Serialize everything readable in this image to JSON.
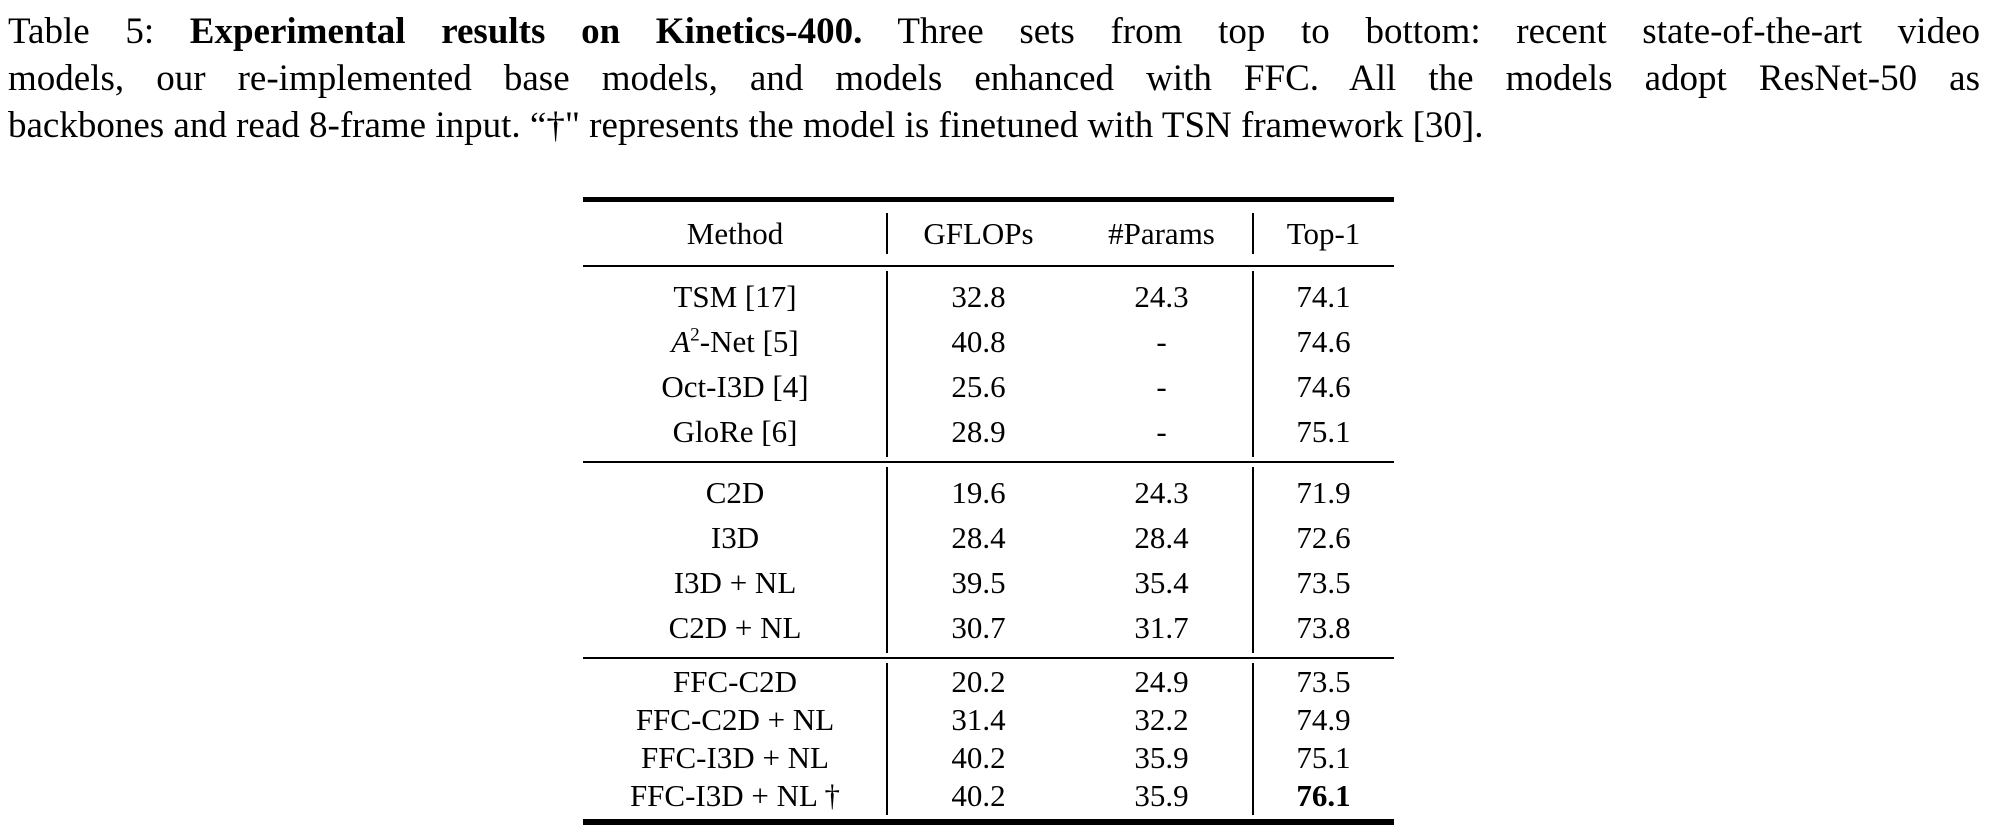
{
  "caption": {
    "line1_prefix": "Table 5: ",
    "line1_bold": "Experimental results on Kinetics-400.",
    "line1_rest": " Three sets from top to bottom: recent state-of-the-art video",
    "line2": "models, our re-implemented base models, and models enhanced with FFC. All the models adopt ResNet-50 as",
    "line3": "backbones and read 8-frame input. “†\" represents the model is finetuned with TSN framework [30]."
  },
  "table": {
    "columns": [
      "Method",
      "GFLOPs",
      "#Params",
      "Top-1"
    ],
    "blocks": [
      {
        "label": "state-of-the-art video models",
        "rows": [
          {
            "method": "TSM [17]",
            "gflops": "32.8",
            "params": "24.3",
            "top1": "74.1"
          },
          {
            "method_var": "A",
            "method_sup": "2",
            "method_rest": "-Net [5]",
            "gflops": "40.8",
            "params": "-",
            "top1": "74.6"
          },
          {
            "method": "Oct-I3D [4]",
            "gflops": "25.6",
            "params": "-",
            "top1": "74.6"
          },
          {
            "method": "GloRe [6]",
            "gflops": "28.9",
            "params": "-",
            "top1": "75.1"
          }
        ]
      },
      {
        "label": "re-implemented base models",
        "rows": [
          {
            "method": "C2D",
            "gflops": "19.6",
            "params": "24.3",
            "top1": "71.9"
          },
          {
            "method": "I3D",
            "gflops": "28.4",
            "params": "28.4",
            "top1": "72.6"
          },
          {
            "method": "I3D + NL",
            "gflops": "39.5",
            "params": "35.4",
            "top1": "73.5"
          },
          {
            "method": "C2D + NL",
            "gflops": "30.7",
            "params": "31.7",
            "top1": "73.8"
          }
        ]
      },
      {
        "label": "models enhanced with FFC",
        "rows": [
          {
            "method": "FFC-C2D",
            "gflops": "20.2",
            "params": "24.9",
            "top1": "73.5"
          },
          {
            "method": "FFC-C2D + NL",
            "gflops": "31.4",
            "params": "32.2",
            "top1": "74.9"
          },
          {
            "method": "FFC-I3D + NL",
            "gflops": "40.2",
            "params": "35.9",
            "top1": "75.1"
          },
          {
            "method": "FFC-I3D + NL †",
            "gflops": "40.2",
            "params": "35.9",
            "top1": "76.1",
            "top1_bold": true
          }
        ]
      }
    ]
  }
}
